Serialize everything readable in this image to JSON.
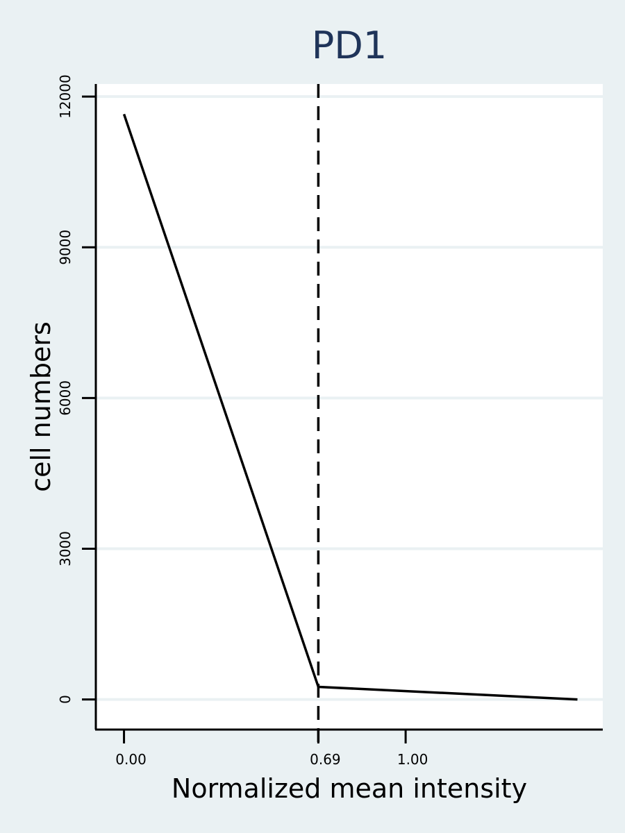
{
  "colors": {
    "background": "#eaf1f3",
    "plot_background": "#ffffff",
    "gridline": "#eaf1f3",
    "title": "#1f3459",
    "line": "#000000"
  },
  "chart_data": {
    "type": "line",
    "title": "PD1",
    "xlabel": "Normalized mean intensity",
    "ylabel": "cell numbers",
    "xlim": [
      -0.1,
      1.7
    ],
    "ylim": [
      -600,
      12250
    ],
    "grid": "horizontal",
    "x_ticks": [
      {
        "value": 0.0,
        "label": "0.00"
      },
      {
        "value": 0.69,
        "label": "0.69"
      },
      {
        "value": 1.0,
        "label": "1.00"
      }
    ],
    "y_ticks": [
      {
        "value": 0,
        "label": "0"
      },
      {
        "value": 3000,
        "label": "3000"
      },
      {
        "value": 6000,
        "label": "6000"
      },
      {
        "value": 9000,
        "label": "9000"
      },
      {
        "value": 12000,
        "label": "12000"
      }
    ],
    "series": [
      {
        "x": [
          0.0,
          0.69,
          1.61
        ],
        "y": [
          11650,
          250,
          0
        ]
      }
    ],
    "vline": {
      "x": 0.69,
      "style": "dashed"
    }
  }
}
